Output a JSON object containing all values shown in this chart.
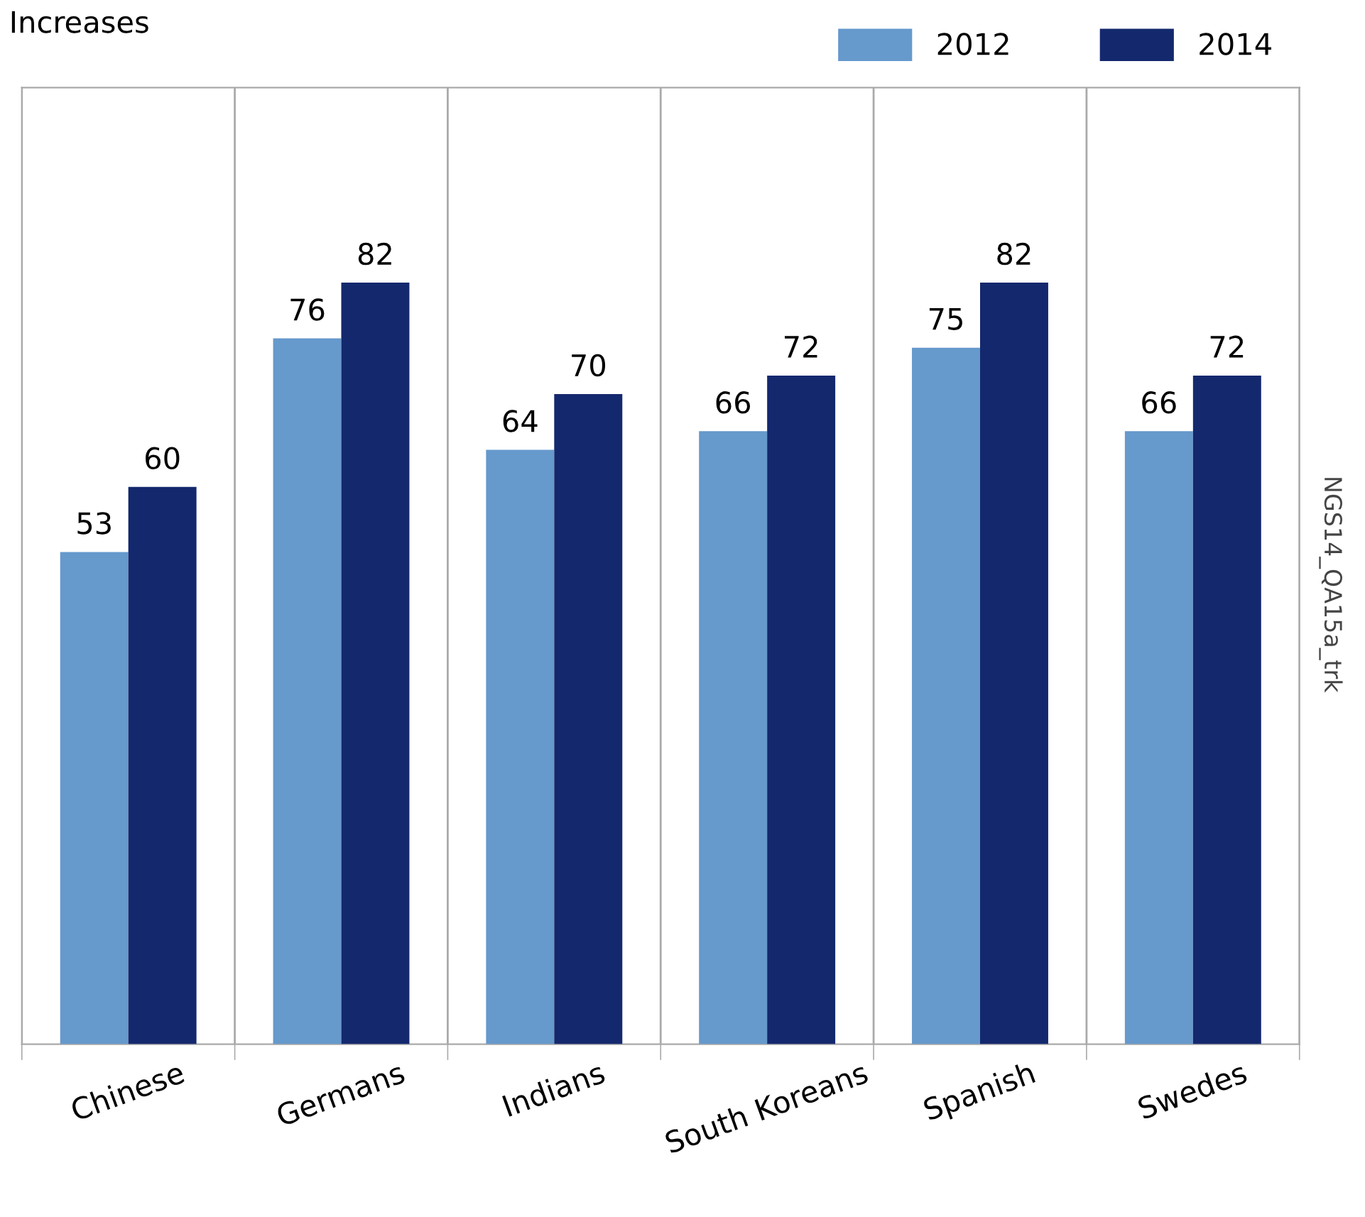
{
  "chart_data": {
    "type": "bar",
    "title": "Increases",
    "categories": [
      "Chinese",
      "Germans",
      "Indians",
      "South Koreans",
      "Spanish",
      "Swedes"
    ],
    "series": [
      {
        "name": "2012",
        "color": "#6699cc",
        "values": [
          53,
          76,
          64,
          66,
          75,
          66
        ]
      },
      {
        "name": "2014",
        "color": "#14286e",
        "values": [
          60,
          82,
          70,
          72,
          82,
          72
        ]
      }
    ],
    "ylim": [
      0,
      103
    ],
    "tick_labels": "x",
    "data_labels": true,
    "grid": "x",
    "legend": "top right",
    "annotations": [
      "NGS14_QA15a_trk"
    ]
  }
}
